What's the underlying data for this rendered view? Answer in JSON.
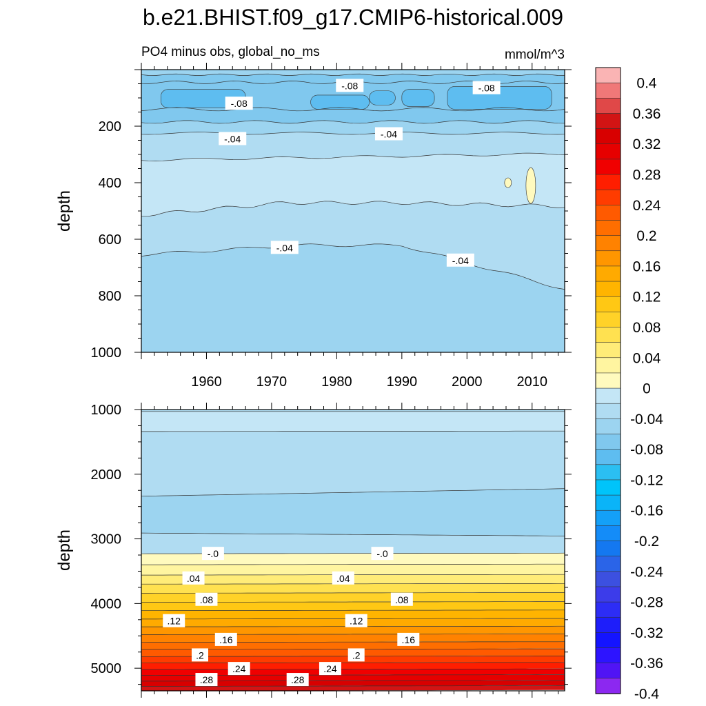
{
  "title": "b.e21.BHIST.f09_g17.CMIP6-historical.009",
  "chart_data": {
    "type": "heatmap",
    "variable_label": "PO4 minus obs, global_no_ms",
    "units": "mmol/m^3",
    "x_ticks": [
      "1960",
      "1970",
      "1980",
      "1990",
      "2000",
      "2010"
    ],
    "x_range": [
      1950,
      2015
    ],
    "panels": [
      {
        "name": "upper",
        "ylabel": "depth",
        "y_range": [
          0,
          1000
        ],
        "y_ticks": [
          "200",
          "400",
          "600",
          "800",
          "1000"
        ],
        "contour_labels": [
          {
            "text": "-.08",
            "x": 1965,
            "y": 120
          },
          {
            "text": "-.08",
            "x": 1982,
            "y": 57
          },
          {
            "text": "-.08",
            "x": 2003,
            "y": 65
          },
          {
            "text": "-.04",
            "x": 1964,
            "y": 245
          },
          {
            "text": "-.04",
            "x": 1988,
            "y": 228
          },
          {
            "text": "-.04",
            "x": 1972,
            "y": 630
          },
          {
            "text": "-.04",
            "x": 1999,
            "y": 675
          }
        ]
      },
      {
        "name": "lower",
        "ylabel": "depth",
        "y_range": [
          1000,
          5350
        ],
        "y_ticks": [
          "1000",
          "2000",
          "3000",
          "4000",
          "5000"
        ],
        "contour_labels": [
          {
            "text": "-.0",
            "x": 1961,
            "y": 3230
          },
          {
            "text": "-.0",
            "x": 1987,
            "y": 3230
          },
          {
            "text": ".04",
            "x": 1958,
            "y": 3610
          },
          {
            "text": ".04",
            "x": 1981,
            "y": 3610
          },
          {
            "text": ".08",
            "x": 1960,
            "y": 3940
          },
          {
            "text": ".08",
            "x": 1990,
            "y": 3940
          },
          {
            "text": ".12",
            "x": 1955,
            "y": 4270
          },
          {
            "text": ".12",
            "x": 1983,
            "y": 4270
          },
          {
            "text": ".16",
            "x": 1963,
            "y": 4560
          },
          {
            "text": ".16",
            "x": 1991,
            "y": 4560
          },
          {
            "text": ".2",
            "x": 1959,
            "y": 4800
          },
          {
            "text": ".2",
            "x": 1983,
            "y": 4800
          },
          {
            "text": ".24",
            "x": 1965,
            "y": 5010
          },
          {
            "text": ".24",
            "x": 1979,
            "y": 5010
          },
          {
            "text": ".28",
            "x": 1960,
            "y": 5180
          },
          {
            "text": ".28",
            "x": 1974,
            "y": 5180
          }
        ]
      }
    ],
    "colorbar": {
      "labels": [
        "0.4",
        "0.36",
        "0.32",
        "0.28",
        "0.24",
        "0.2",
        "0.16",
        "0.12",
        "0.08",
        "0.04",
        "0",
        "-0.04",
        "-0.08",
        "-0.12",
        "-0.16",
        "-0.2",
        "-0.24",
        "-0.28",
        "-0.32",
        "-0.36",
        "-0.4"
      ],
      "colors_top_to_bottom": [
        "#fab4b4",
        "#f07878",
        "#e04848",
        "#d21414",
        "#d80000",
        "#e60000",
        "#f00000",
        "#ff1e00",
        "#ff3c00",
        "#ff5a00",
        "#ff6e00",
        "#ff8200",
        "#ff9600",
        "#ffaa00",
        "#ffb400",
        "#ffc814",
        "#ffd228",
        "#ffe150",
        "#ffec78",
        "#fff5a0",
        "#fffabe",
        "#c4e6f6",
        "#b0dcf2",
        "#9cd4f0",
        "#80c8ee",
        "#5ebdf0",
        "#2bbff2",
        "#00c4fa",
        "#0ab4f8",
        "#14a0f8",
        "#148cf8",
        "#1478f0",
        "#2a64e8",
        "#3c50e0",
        "#3c3cea",
        "#2d2df5",
        "#1e1efa",
        "#1414ff",
        "#2d14ff",
        "#5014f5",
        "#8c28f0"
      ]
    }
  }
}
